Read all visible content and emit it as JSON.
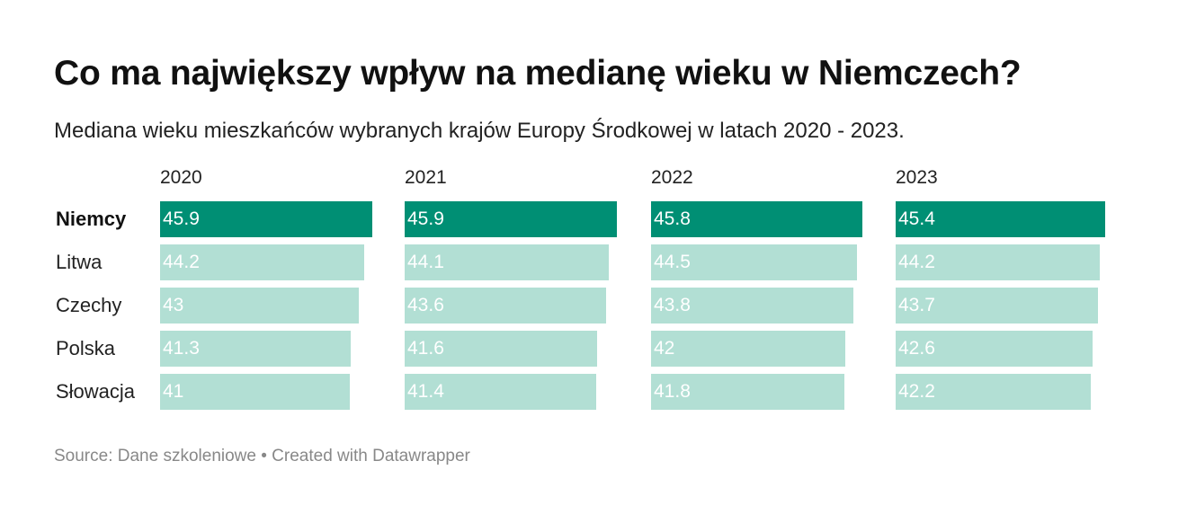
{
  "header": {
    "title": "Co ma największy wpływ na medianę wieku w Niemczech?",
    "subtitle": "Mediana wieku mieszkańców wybranych krajów Europy Środkowej w latach 2020 - 2023."
  },
  "footer": {
    "source": "Source: Dane szkoleniowe • Created with Datawrapper"
  },
  "colors": {
    "highlight": "#008f74",
    "base": "#b2dfd4",
    "highlight_text": "#ffffff",
    "base_text": "#ffffff"
  },
  "chart_data": {
    "type": "bar",
    "orientation": "horizontal",
    "layout": "small-multiples",
    "categories": [
      "Niemcy",
      "Litwa",
      "Czechy",
      "Polska",
      "Słowacja"
    ],
    "highlighted_category": "Niemcy",
    "series": [
      {
        "name": "2020",
        "values": [
          45.9,
          44.2,
          43,
          41.3,
          41
        ]
      },
      {
        "name": "2021",
        "values": [
          45.9,
          44.1,
          43.6,
          41.6,
          41.4
        ]
      },
      {
        "name": "2022",
        "values": [
          45.8,
          44.5,
          43.8,
          42,
          41.8
        ]
      },
      {
        "name": "2023",
        "values": [
          45.4,
          44.2,
          43.7,
          42.6,
          42.2
        ]
      }
    ],
    "xlim": [
      0,
      45.9
    ],
    "value_labels": "inside-left",
    "grid": false,
    "legend": "none"
  }
}
